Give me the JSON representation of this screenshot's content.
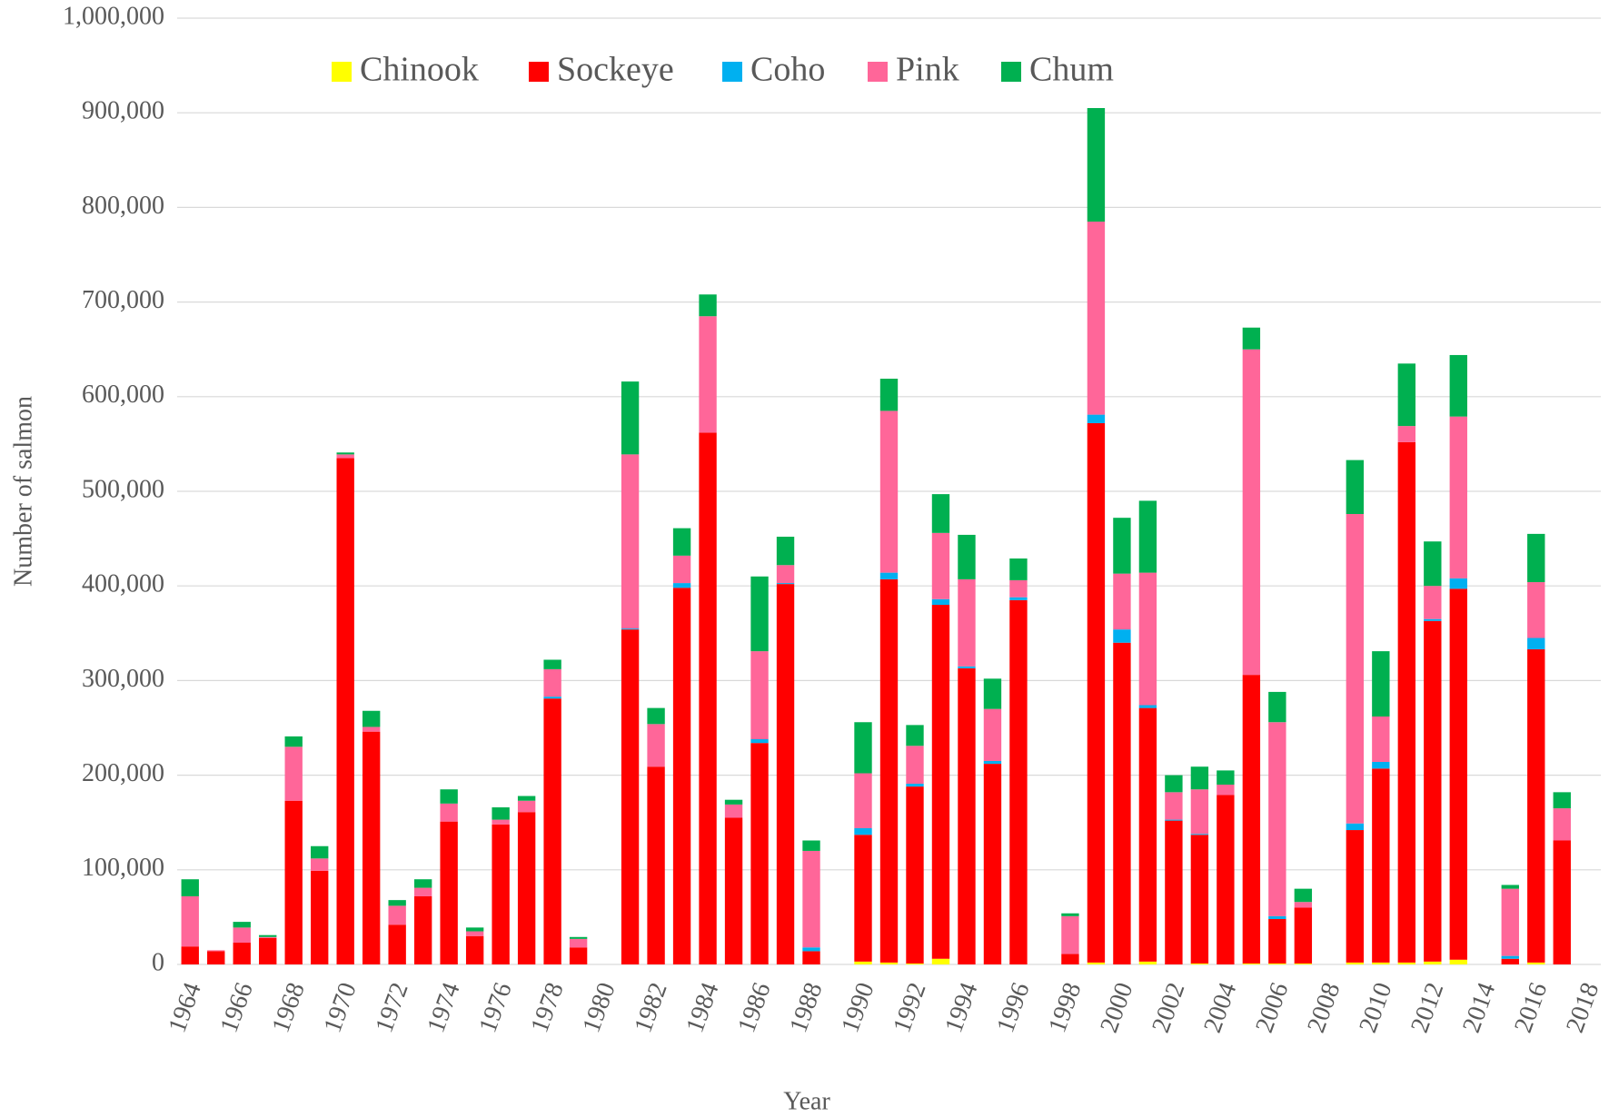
{
  "chart_data": {
    "type": "bar",
    "stacked": true,
    "x_label": "Year",
    "y_label": "Number of salmon",
    "categories": [
      "1964",
      null,
      "1966",
      null,
      "1968",
      null,
      "1970",
      null,
      "1972",
      null,
      "1974",
      null,
      "1976",
      null,
      "1978",
      null,
      "1980",
      null,
      "1982",
      null,
      "1984",
      null,
      "1986",
      null,
      "1988",
      null,
      "1990",
      null,
      "1992",
      null,
      "1994",
      null,
      "1996",
      null,
      "1998",
      null,
      "2000",
      null,
      "2002",
      null,
      "2004",
      null,
      "2006",
      null,
      "2008",
      null,
      "2010",
      null,
      "2012",
      null,
      "2014",
      null,
      "2016",
      null,
      "2018"
    ],
    "series": [
      {
        "name": "Chinook",
        "color": "#ffff00",
        "values": [
          0,
          0,
          0,
          0,
          0,
          0,
          0,
          0,
          0,
          0,
          0,
          0,
          0,
          0,
          0,
          0,
          0,
          0,
          0,
          0,
          0,
          0,
          0,
          0,
          0,
          0,
          3000,
          2000,
          1000,
          6000,
          0,
          0,
          0,
          0,
          0,
          2000,
          0,
          3000,
          0,
          1000,
          0,
          1000,
          1000,
          1000,
          0,
          2000,
          2000,
          2000,
          3000,
          5000,
          0,
          0,
          2000,
          0,
          0
        ]
      },
      {
        "name": "Sockeye",
        "color": "#ff0000",
        "values": [
          19000,
          14000,
          23000,
          28000,
          173000,
          99000,
          535000,
          246000,
          42000,
          72000,
          151000,
          30000,
          148000,
          161000,
          281000,
          18000,
          0,
          354000,
          209000,
          398000,
          562000,
          155000,
          234000,
          402000,
          14000,
          0,
          134000,
          405000,
          187000,
          374000,
          313000,
          212000,
          385000,
          0,
          11000,
          570000,
          340000,
          268000,
          152000,
          136000,
          179000,
          305000,
          47000,
          59000,
          0,
          140000,
          205000,
          550000,
          360000,
          392000,
          0,
          6000,
          331000,
          131000,
          0
        ]
      },
      {
        "name": "Coho",
        "color": "#00b0f0",
        "values": [
          0,
          0,
          0,
          0,
          0,
          0,
          0,
          0,
          0,
          0,
          0,
          0,
          0,
          0,
          2000,
          0,
          0,
          1000,
          0,
          5000,
          0,
          0,
          4000,
          1000,
          4000,
          0,
          7000,
          7000,
          3000,
          6000,
          2000,
          3000,
          3000,
          0,
          0,
          9000,
          14000,
          3000,
          1000,
          1000,
          0,
          0,
          3000,
          0,
          0,
          7000,
          7000,
          0,
          2000,
          11000,
          0,
          3000,
          12000,
          0,
          0
        ]
      },
      {
        "name": "Pink",
        "color": "#ff6699",
        "values": [
          53000,
          1000,
          16000,
          1000,
          57000,
          13000,
          4000,
          5000,
          20000,
          9000,
          19000,
          5000,
          5000,
          12000,
          29000,
          9000,
          0,
          184000,
          45000,
          29000,
          123000,
          14000,
          93000,
          19000,
          102000,
          0,
          58000,
          171000,
          40000,
          70000,
          92000,
          55000,
          18000,
          0,
          40000,
          204000,
          59000,
          140000,
          29000,
          47000,
          11000,
          344000,
          205000,
          6000,
          0,
          327000,
          48000,
          17000,
          35000,
          171000,
          0,
          71000,
          59000,
          34000,
          0
        ]
      },
      {
        "name": "Chum",
        "color": "#00b050",
        "values": [
          18000,
          0,
          6000,
          2000,
          11000,
          13000,
          2000,
          17000,
          6000,
          9000,
          15000,
          4000,
          13000,
          5000,
          10000,
          2000,
          0,
          77000,
          17000,
          29000,
          23000,
          5000,
          79000,
          30000,
          11000,
          0,
          54000,
          34000,
          22000,
          41000,
          47000,
          32000,
          23000,
          0,
          3000,
          120000,
          59000,
          76000,
          18000,
          24000,
          15000,
          23000,
          32000,
          14000,
          0,
          57000,
          69000,
          66000,
          47000,
          65000,
          0,
          4000,
          51000,
          17000,
          0
        ]
      }
    ],
    "ylim": [
      0,
      1000000
    ],
    "yticks": [
      0,
      {
        "value": 100000,
        "label": "100,000"
      },
      {
        "value": 200000,
        "label": "200,000"
      },
      {
        "value": 300000,
        "label": "300,000"
      },
      {
        "value": 400000,
        "label": "400,000"
      },
      {
        "value": 500000,
        "label": "500,000"
      },
      {
        "value": 600000,
        "label": "600,000"
      },
      {
        "value": 700000,
        "label": "700,000"
      },
      {
        "value": 800000,
        "label": "800,000"
      },
      {
        "value": 900000,
        "label": "900,000"
      },
      {
        "value": 1000000,
        "label": "1,000,000"
      }
    ],
    "grid": true,
    "legend": "top"
  }
}
